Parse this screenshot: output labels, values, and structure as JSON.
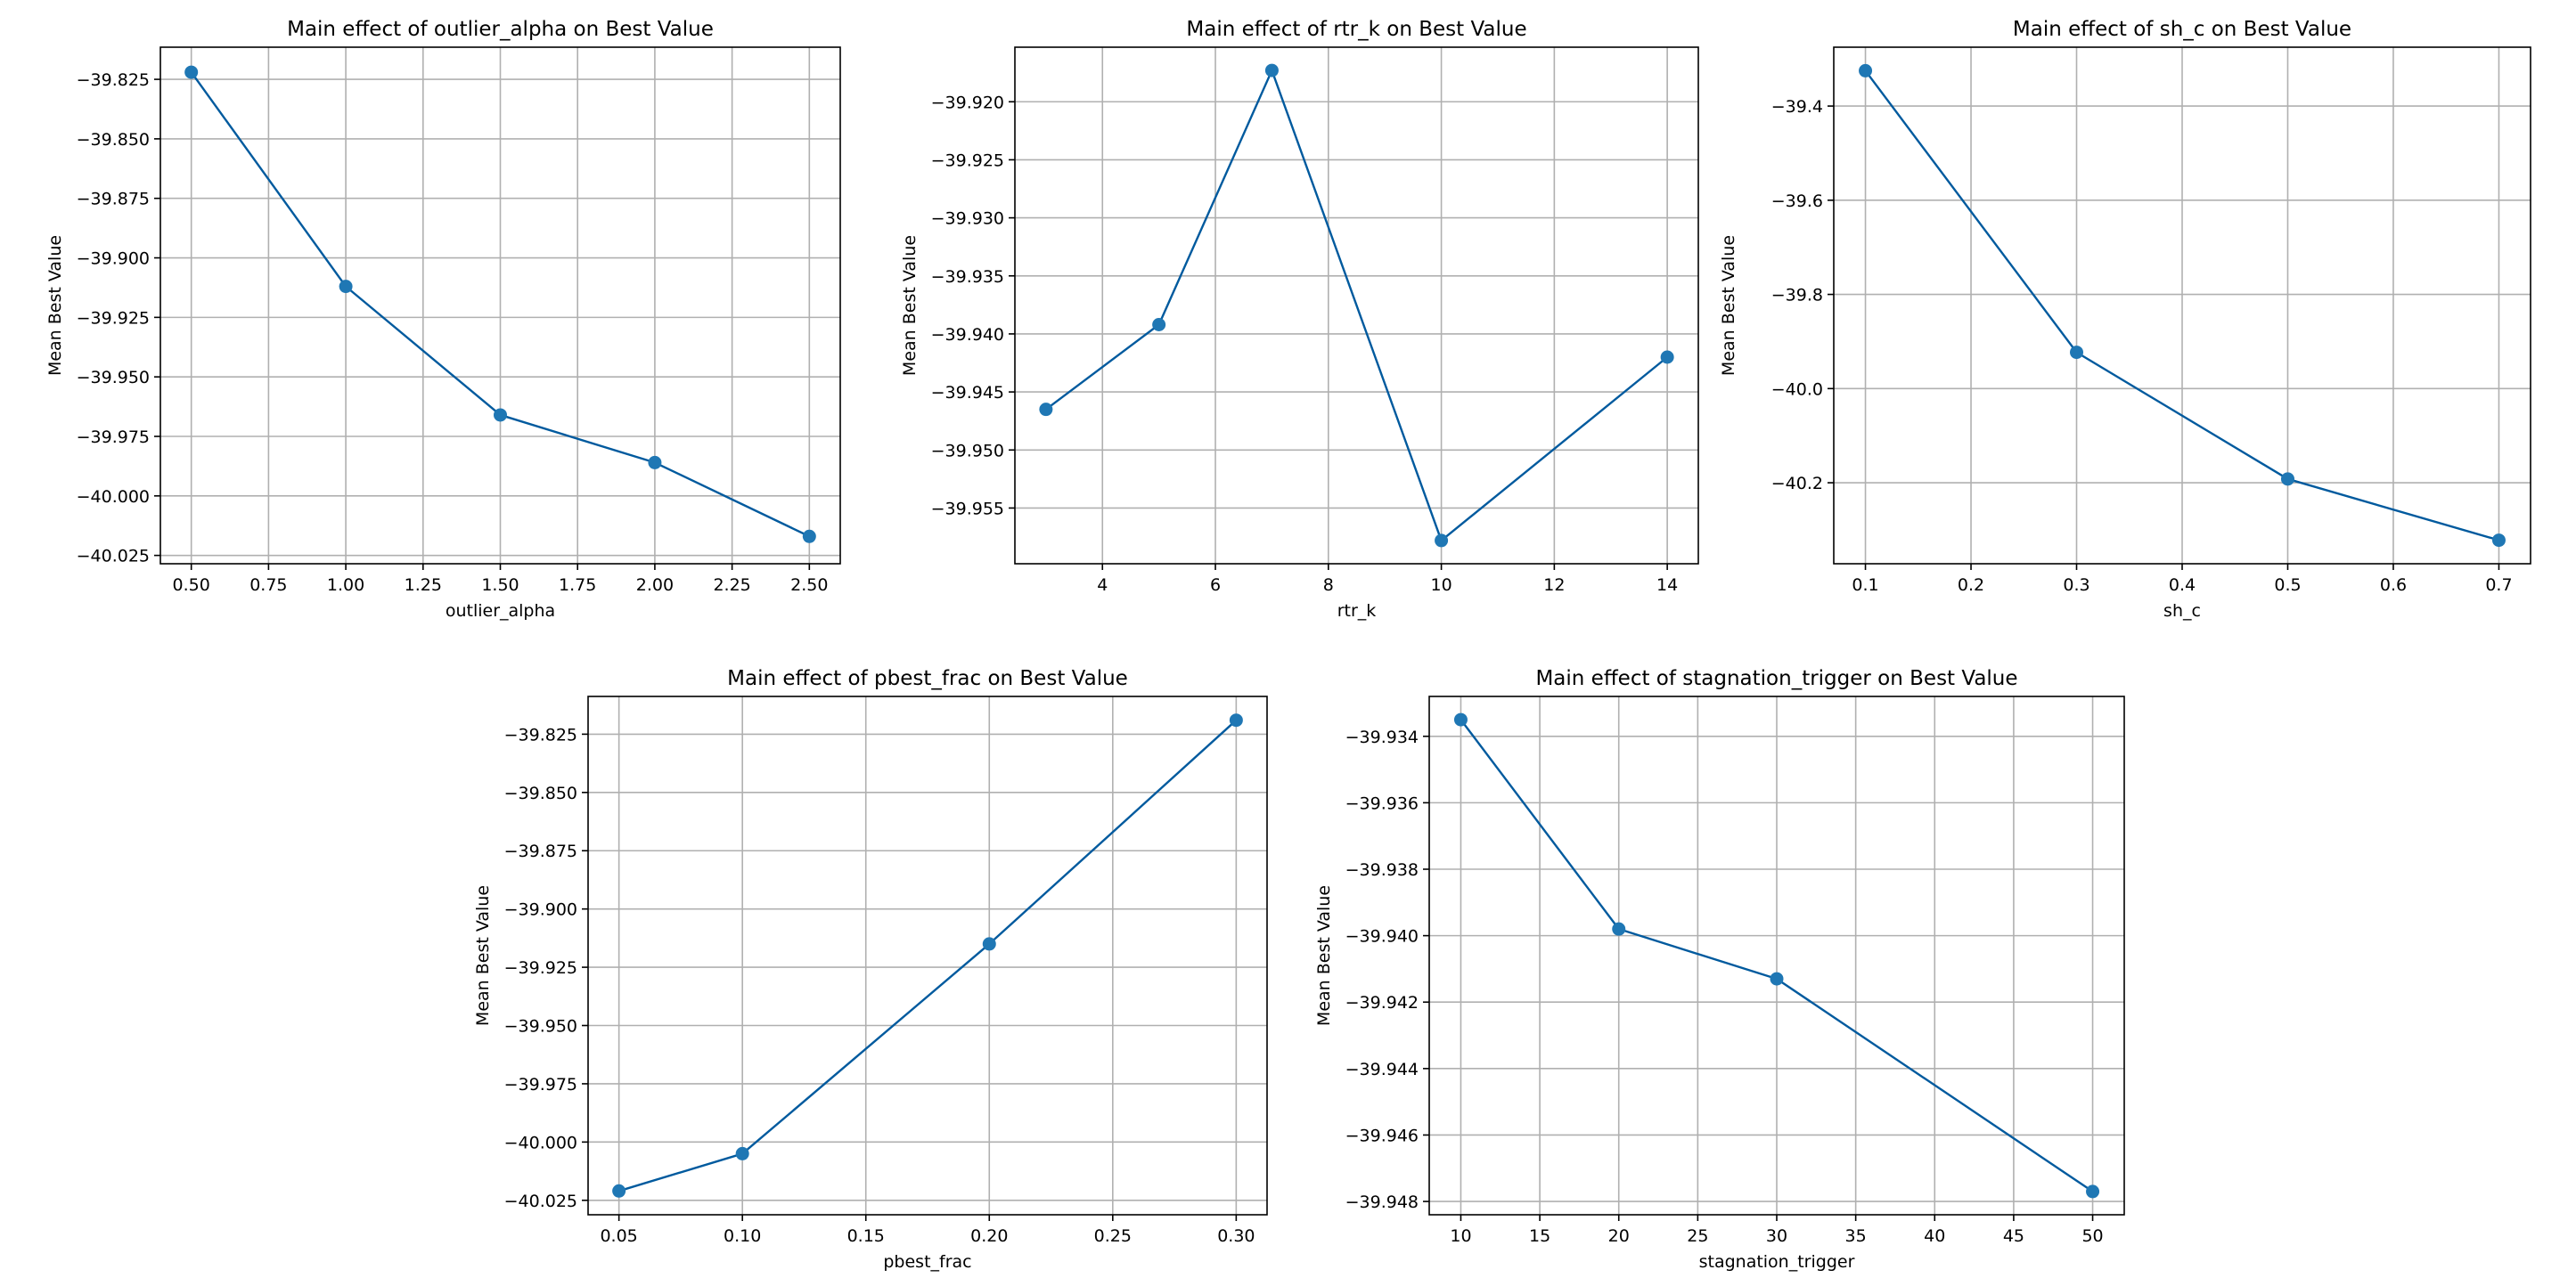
{
  "figure": {
    "colors": {
      "line": "#005a9e",
      "marker": "#1f77b4",
      "grid": "#b0b0b0",
      "frame": "#000000"
    }
  },
  "chart_data": [
    {
      "type": "line",
      "title": "Main effect of outlier_alpha on Best Value",
      "xlabel": "outlier_alpha",
      "ylabel": "Mean Best Value",
      "x": [
        0.5,
        1.0,
        1.5,
        2.0,
        2.5
      ],
      "y": [
        -39.822,
        -39.912,
        -39.966,
        -39.986,
        -40.017
      ],
      "xlim": [
        0.4,
        2.6
      ],
      "ylim": [
        -40.0285,
        -39.8115
      ],
      "xticks": [
        0.5,
        0.75,
        1.0,
        1.25,
        1.5,
        1.75,
        2.0,
        2.25,
        2.5
      ],
      "xtick_labels": [
        "0.50",
        "0.75",
        "1.00",
        "1.25",
        "1.50",
        "1.75",
        "2.00",
        "2.25",
        "2.50"
      ],
      "yticks": [
        -39.825,
        -39.85,
        -39.875,
        -39.9,
        -39.925,
        -39.95,
        -39.975,
        -40.0,
        -40.025
      ],
      "ytick_labels": [
        "−39.825",
        "−39.850",
        "−39.875",
        "−39.900",
        "−39.925",
        "−39.950",
        "−39.975",
        "−40.000",
        "−40.025"
      ],
      "grid": true
    },
    {
      "type": "line",
      "title": "Main effect of rtr_k on Best Value",
      "xlabel": "rtr_k",
      "ylabel": "Mean Best Value",
      "x": [
        3,
        5,
        7,
        10,
        14
      ],
      "y": [
        -39.9465,
        -39.9392,
        -39.9173,
        -39.9578,
        -39.942
      ],
      "xlim": [
        2.45,
        14.55
      ],
      "ylim": [
        -39.9598,
        -39.9153
      ],
      "xticks": [
        4,
        6,
        8,
        10,
        12,
        14
      ],
      "xtick_labels": [
        "4",
        "6",
        "8",
        "10",
        "12",
        "14"
      ],
      "yticks": [
        -39.92,
        -39.925,
        -39.93,
        -39.935,
        -39.94,
        -39.945,
        -39.95,
        -39.955
      ],
      "ytick_labels": [
        "−39.920",
        "−39.925",
        "−39.930",
        "−39.935",
        "−39.940",
        "−39.945",
        "−39.950",
        "−39.955"
      ],
      "grid": true
    },
    {
      "type": "line",
      "title": "Main effect of sh_c on Best Value",
      "xlabel": "sh_c",
      "ylabel": "Mean Best Value",
      "x": [
        0.1,
        0.3,
        0.5,
        0.7
      ],
      "y": [
        -39.325,
        -39.923,
        -40.192,
        -40.322
      ],
      "xlim": [
        0.07,
        0.73
      ],
      "ylim": [
        -40.372,
        -39.275
      ],
      "xticks": [
        0.1,
        0.2,
        0.3,
        0.4,
        0.5,
        0.6,
        0.7
      ],
      "xtick_labels": [
        "0.1",
        "0.2",
        "0.3",
        "0.4",
        "0.5",
        "0.6",
        "0.7"
      ],
      "yticks": [
        -39.4,
        -39.6,
        -39.8,
        -40.0,
        -40.2
      ],
      "ytick_labels": [
        "−39.4",
        "−39.6",
        "−39.8",
        "−40.0",
        "−40.2"
      ],
      "grid": true
    },
    {
      "type": "line",
      "title": "Main effect of pbest_frac on Best Value",
      "xlabel": "pbest_frac",
      "ylabel": "Mean Best Value",
      "x": [
        0.05,
        0.1,
        0.2,
        0.3
      ],
      "y": [
        -40.021,
        -40.005,
        -39.915,
        -39.819
      ],
      "xlim": [
        0.0375,
        0.3125
      ],
      "ylim": [
        -40.0312,
        -39.8088
      ],
      "xticks": [
        0.05,
        0.1,
        0.15,
        0.2,
        0.25,
        0.3
      ],
      "xtick_labels": [
        "0.05",
        "0.10",
        "0.15",
        "0.20",
        "0.25",
        "0.30"
      ],
      "yticks": [
        -39.825,
        -39.85,
        -39.875,
        -39.9,
        -39.925,
        -39.95,
        -39.975,
        -40.0,
        -40.025
      ],
      "ytick_labels": [
        "−39.825",
        "−39.850",
        "−39.875",
        "−39.900",
        "−39.925",
        "−39.950",
        "−39.975",
        "−40.000",
        "−40.025"
      ],
      "grid": true
    },
    {
      "type": "line",
      "title": "Main effect of stagnation_trigger on Best Value",
      "xlabel": "stagnation_trigger",
      "ylabel": "Mean Best Value",
      "x": [
        10,
        20,
        30,
        50
      ],
      "y": [
        -39.9335,
        -39.9398,
        -39.9413,
        -39.9477
      ],
      "xlim": [
        8,
        52
      ],
      "ylim": [
        -39.9484,
        -39.9328
      ],
      "xticks": [
        10,
        15,
        20,
        25,
        30,
        35,
        40,
        45,
        50
      ],
      "xtick_labels": [
        "10",
        "15",
        "20",
        "25",
        "30",
        "35",
        "40",
        "45",
        "50"
      ],
      "yticks": [
        -39.934,
        -39.936,
        -39.938,
        -39.94,
        -39.942,
        -39.944,
        -39.946,
        -39.948
      ],
      "ytick_labels": [
        "−39.934",
        "−39.936",
        "−39.938",
        "−39.940",
        "−39.942",
        "−39.944",
        "−39.946",
        "−39.948"
      ],
      "grid": true
    }
  ]
}
